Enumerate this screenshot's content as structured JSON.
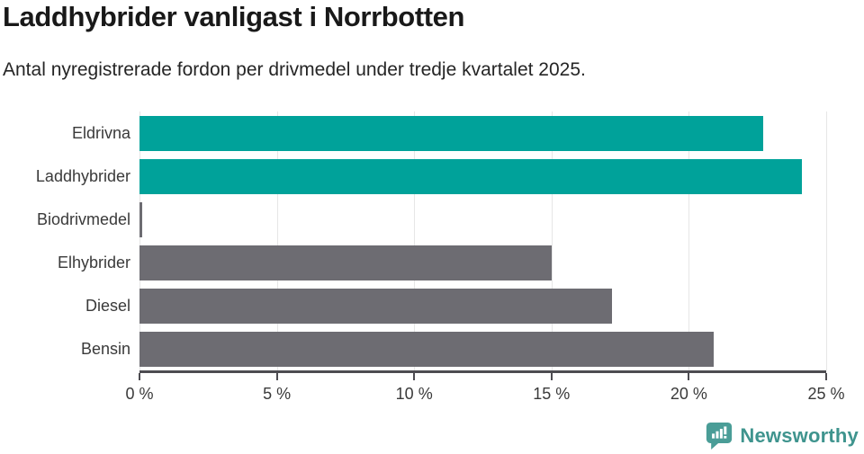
{
  "header": {
    "title": "Laddhybrider vanligast i Norrbotten",
    "subtitle": "Antal nyregistrerade fordon per drivmedel under tredje kvartalet 2025."
  },
  "chart_data": {
    "type": "bar",
    "orientation": "horizontal",
    "title": "Laddhybrider vanligast i Norrbotten",
    "subtitle": "Antal nyregistrerade fordon per drivmedel under tredje kvartalet 2025.",
    "categories": [
      "Eldrivna",
      "Laddhybrider",
      "Biodrivmedel",
      "Elhybrider",
      "Diesel",
      "Bensin"
    ],
    "values": [
      22.7,
      24.1,
      0.1,
      15.0,
      17.2,
      20.9
    ],
    "unit": "%",
    "bar_colors": [
      "#00a29a",
      "#00a29a",
      "#6d6c72",
      "#6d6c72",
      "#6d6c72",
      "#6d6c72"
    ],
    "xlim": [
      0,
      25
    ],
    "x_ticks": [
      0,
      5,
      10,
      15,
      20,
      25
    ],
    "x_tick_labels": [
      "0 %",
      "5 %",
      "10 %",
      "15 %",
      "20 %",
      "25 %"
    ],
    "grid": "vertical",
    "legend": "none",
    "colors": {
      "highlight": "#00a29a",
      "default": "#6d6c72"
    }
  },
  "footer": {
    "brand": "Newsworthy",
    "brand_color": "#3f948e"
  }
}
